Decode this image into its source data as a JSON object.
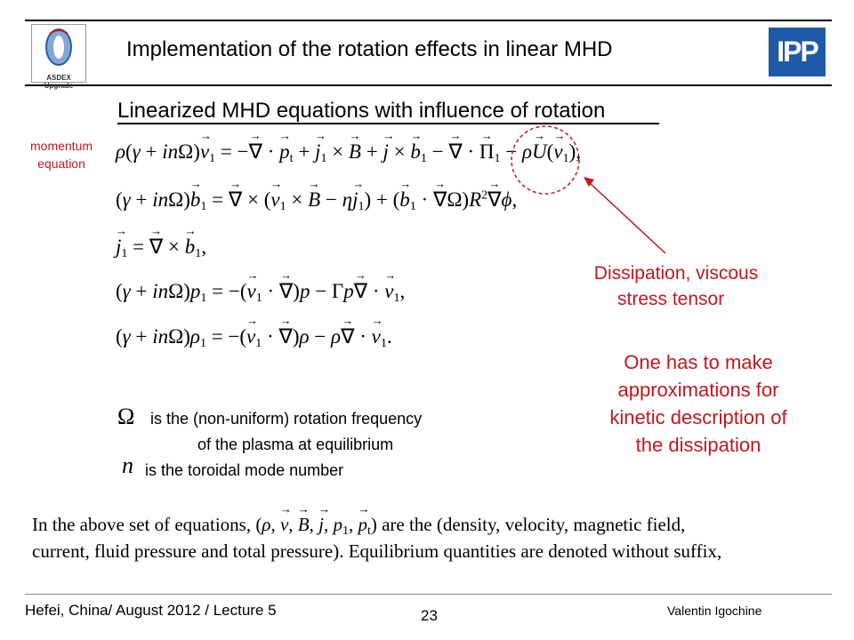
{
  "header": {
    "title": "Implementation of the rotation effects in linear MHD",
    "left_logo_text": "ASDEX Upgrade",
    "right_logo_text": "IPP",
    "accent_color": "#c0181f"
  },
  "subtitle": "Linearized MHD equations with influence of rotation",
  "side_label": [
    "momentum",
    "equation"
  ],
  "annotation": {
    "label": [
      "Dissipation, viscous",
      "stress tensor"
    ],
    "note": [
      "One has to make",
      "approximations for",
      "kinetic description of",
      "the dissipation"
    ]
  },
  "symbols": {
    "omega": "Ω",
    "omega_desc": [
      "is the (non-uniform) rotation frequency",
      "of the plasma at equilibrium"
    ],
    "n": "n",
    "n_desc": "is the toroidal mode number"
  },
  "caption": {
    "line1_start": "In the above set of equations, (",
    "line1_end": ") are the (density, velocity, magnetic field,",
    "line2": "current, fluid pressure and total pressure).  Equilibrium quantities are denoted without suffix,"
  },
  "footer": {
    "left": "Hefei, China/ August 2012 / Lecture 5",
    "page": "23",
    "author": "Valentin Igochine"
  }
}
